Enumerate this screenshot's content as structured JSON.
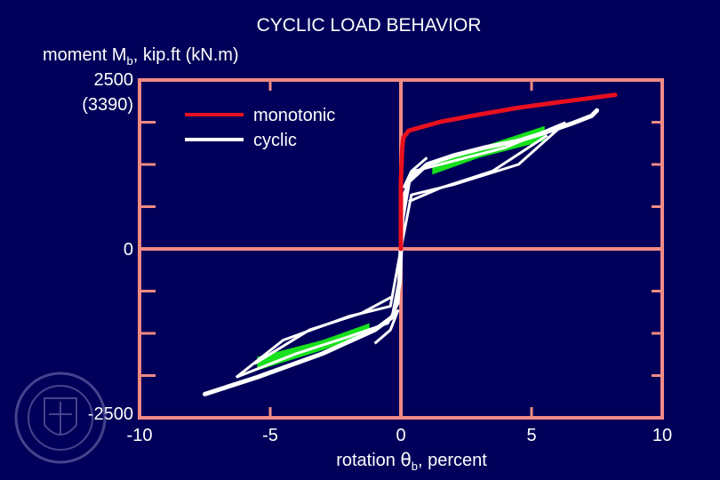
{
  "chart_data": {
    "type": "line",
    "title": "CYCLIC LOAD BEHAVIOR",
    "ylabel": {
      "main": "moment M",
      "sub": "b",
      "rest": ", kip.ft (kN.m)"
    },
    "xlabel": {
      "main": "rotation ",
      "theta": "θ",
      "sub": "b",
      "rest": ", percent"
    },
    "ylim": [
      -2500,
      2500
    ],
    "xlim": [
      -10,
      10
    ],
    "y_ticks": [
      {
        "value": 2500,
        "label": "2500"
      },
      {
        "value": 0,
        "label": "0"
      },
      {
        "value": -2500,
        "label": "-2500"
      }
    ],
    "y_top_kn": "(3390)",
    "x_ticks": [
      {
        "value": -10,
        "label": "-10"
      },
      {
        "value": -5,
        "label": "-5"
      },
      {
        "value": 0,
        "label": "0"
      },
      {
        "value": 5,
        "label": "5"
      },
      {
        "value": 10,
        "label": "10"
      }
    ],
    "legend_position": "top-left",
    "series": [
      {
        "name": "monotonic",
        "color": "#e8101e",
        "x": [
          0,
          0,
          0.05,
          0.1,
          0.3,
          1.5,
          3,
          4.5,
          6,
          7,
          8.2
        ],
        "y": [
          0,
          1000,
          1500,
          1650,
          1750,
          1880,
          1990,
          2090,
          2170,
          2220,
          2280
        ]
      },
      {
        "name": "cyclic",
        "color": "#ffffff",
        "x": [
          -7.5,
          -5.5,
          -3,
          -1,
          -0.3,
          -0.05,
          0,
          0.05,
          0.3,
          1,
          2,
          3.2,
          4.5,
          5.5,
          6.5,
          7.3,
          7.5
        ],
        "y": [
          -2150,
          -1900,
          -1550,
          -1200,
          -1000,
          -500,
          0,
          450,
          1000,
          1250,
          1380,
          1500,
          1600,
          1720,
          1850,
          1970,
          2050
        ]
      }
    ]
  }
}
